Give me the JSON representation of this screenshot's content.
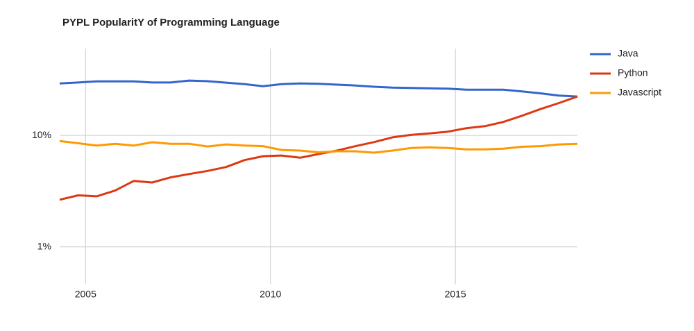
{
  "chart_data": {
    "type": "line",
    "title": "PYPL PopularitY of Programming Language",
    "x": [
      2004.3,
      2004.8,
      2005.3,
      2005.8,
      2006.3,
      2006.8,
      2007.3,
      2007.8,
      2008.3,
      2008.8,
      2009.3,
      2009.8,
      2010.3,
      2010.8,
      2011.3,
      2011.8,
      2012.3,
      2012.8,
      2013.3,
      2013.8,
      2014.3,
      2014.8,
      2015.3,
      2015.8,
      2016.3,
      2016.8,
      2017.3,
      2017.8,
      2018.3
    ],
    "series": [
      {
        "name": "Java",
        "color": "#3366cc",
        "values": [
          29.2,
          29.8,
          30.5,
          30.5,
          30.5,
          29.8,
          29.8,
          31,
          30.6,
          29.7,
          28.8,
          27.6,
          28.8,
          29.2,
          29,
          28.5,
          28,
          27.3,
          26.8,
          26.6,
          26.4,
          26.2,
          25.7,
          25.7,
          25.7,
          24.8,
          23.8,
          22.7,
          22.3
        ]
      },
      {
        "name": "Python",
        "color": "#dc3912",
        "values": [
          2.65,
          2.9,
          2.84,
          3.2,
          3.9,
          3.78,
          4.2,
          4.5,
          4.8,
          5.2,
          6.0,
          6.5,
          6.6,
          6.3,
          6.8,
          7.3,
          8.0,
          8.7,
          9.6,
          10.1,
          10.4,
          10.8,
          11.6,
          12.1,
          13.2,
          15,
          17.2,
          19.5,
          22.3
        ]
      },
      {
        "name": "Javascript",
        "color": "#ff9900",
        "values": [
          8.9,
          8.5,
          8.1,
          8.4,
          8.1,
          8.67,
          8.4,
          8.4,
          7.95,
          8.3,
          8.1,
          8.0,
          7.4,
          7.3,
          7.05,
          7.2,
          7.2,
          7.0,
          7.3,
          7.7,
          7.8,
          7.7,
          7.5,
          7.5,
          7.6,
          7.9,
          8.0,
          8.3,
          8.4
        ]
      }
    ],
    "xlim": [
      2004.3,
      2018.3
    ],
    "xticks": [
      2005,
      2010,
      2015
    ],
    "ylim": [
      0.46,
      60
    ],
    "yticks": [
      {
        "value": 1,
        "label": "1%"
      },
      {
        "value": 10,
        "label": "10%"
      }
    ],
    "log_y": true,
    "grid": true,
    "legend": "right"
  }
}
